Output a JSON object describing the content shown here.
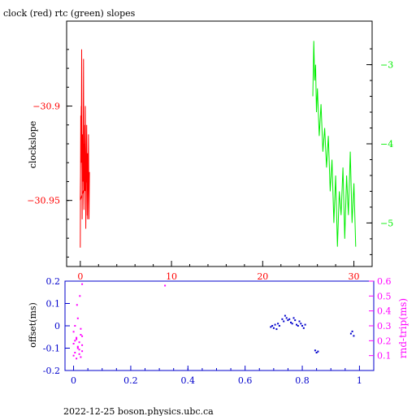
{
  "header": {
    "title": "clock (red) rtc (green) slopes"
  },
  "footer": {
    "text": "2022-12-25  boson.physics.ubc.ca"
  },
  "colors": {
    "frame": "#000000",
    "clock": "#ff0000",
    "rtc": "#00ee00",
    "offset": "#0000cc",
    "rndtrip": "#ff00ff",
    "bottom_axis": "#0000cc"
  },
  "chart_data": [
    {
      "type": "line",
      "title": "clock (red) rtc (green) slopes",
      "xlabel": "",
      "ylabel": "clockslope",
      "xlim": [
        -1.5,
        32
      ],
      "ylim": [
        -30.985,
        -30.855
      ],
      "y2lim": [
        -5.55,
        -2.45
      ],
      "xticks": [
        "0",
        "10",
        "20",
        "30"
      ],
      "yticks": [
        "-30.9",
        "-30.95"
      ],
      "y2ticks": [
        "-3",
        "-4",
        "-5"
      ],
      "series": [
        {
          "name": "clock",
          "axis": "left",
          "color": "#ff0000",
          "x": [
            0.0,
            0.05,
            0.1,
            0.15,
            0.2,
            0.25,
            0.3,
            0.35,
            0.4,
            0.45,
            0.5,
            0.55,
            0.6,
            0.65,
            0.7,
            0.75,
            0.8,
            0.85,
            0.9,
            0.95,
            1.0,
            0.0,
            0.1,
            0.2,
            0.3,
            0.4,
            0.5,
            0.6,
            0.7,
            0.8,
            0.9
          ],
          "y": [
            -30.975,
            -30.905,
            -30.93,
            -30.87,
            -30.96,
            -30.915,
            -30.94,
            -30.875,
            -30.955,
            -30.92,
            -30.945,
            -30.9,
            -30.965,
            -30.93,
            -30.91,
            -30.958,
            -30.925,
            -30.94,
            -30.915,
            -30.96,
            -30.935,
            -30.95,
            -30.9,
            -30.94,
            -30.92,
            -30.955,
            -30.91,
            -30.945,
            -30.93,
            -30.96,
            -30.925
          ]
        },
        {
          "name": "rtc",
          "axis": "right",
          "color": "#00ee00",
          "x": [
            25.5,
            25.6,
            25.7,
            25.8,
            25.9,
            26.0,
            26.2,
            26.4,
            26.6,
            26.8,
            27.0,
            27.2,
            27.4,
            27.6,
            27.8,
            28.0,
            28.2,
            28.4,
            28.6,
            28.8,
            29.0,
            29.2,
            29.4,
            29.6,
            29.8,
            30.0,
            30.2
          ],
          "y": [
            -3.4,
            -2.7,
            -3.2,
            -3.0,
            -3.6,
            -3.3,
            -3.9,
            -3.5,
            -4.1,
            -3.8,
            -4.3,
            -3.9,
            -4.6,
            -4.2,
            -5.0,
            -4.4,
            -5.3,
            -4.6,
            -4.9,
            -4.3,
            -5.2,
            -4.4,
            -4.9,
            -4.1,
            -5.0,
            -4.5,
            -5.3
          ]
        }
      ]
    },
    {
      "type": "scatter",
      "ylabel": "offset(ms)",
      "y2label": "rnd-trip(ms)",
      "xlim": [
        -0.03,
        1.05
      ],
      "ylim": [
        -0.2,
        0.2
      ],
      "y2lim": [
        0.0,
        0.6
      ],
      "xticks": [
        "0",
        "0.2",
        "0.4",
        "0.6",
        "0.8",
        "1"
      ],
      "yticks": [
        "0.2",
        "0.1",
        "0",
        "-0.1",
        "-0.2"
      ],
      "y2ticks": [
        "0.6",
        "0.5",
        "0.4",
        "0.3",
        "0.2",
        "0.1"
      ],
      "series": [
        {
          "name": "offset",
          "axis": "left",
          "color": "#0000cc",
          "x": [
            0.69,
            0.695,
            0.7,
            0.705,
            0.71,
            0.715,
            0.72,
            0.73,
            0.735,
            0.74,
            0.745,
            0.75,
            0.755,
            0.76,
            0.765,
            0.77,
            0.775,
            0.78,
            0.785,
            0.79,
            0.795,
            0.8,
            0.805,
            0.81,
            0.845,
            0.85,
            0.855,
            0.97,
            0.975,
            0.98
          ],
          "y": [
            -0.005,
            0.0,
            -0.01,
            0.005,
            -0.015,
            0.01,
            0.0,
            0.03,
            0.02,
            0.045,
            0.035,
            0.025,
            0.03,
            0.015,
            0.01,
            0.035,
            0.025,
            0.005,
            0.0,
            0.02,
            0.01,
            0.0,
            -0.01,
            0.005,
            -0.11,
            -0.12,
            -0.115,
            -0.035,
            -0.025,
            -0.045
          ]
        },
        {
          "name": "rnd-trip",
          "axis": "right",
          "color": "#ff00ff",
          "x": [
            0.0,
            0.005,
            0.01,
            0.015,
            0.02,
            0.025,
            0.03,
            0.0,
            0.005,
            0.01,
            0.015,
            0.02,
            0.025,
            0.03,
            0.0,
            0.01,
            0.02,
            0.03,
            0.005,
            0.015,
            0.025,
            0.012,
            0.022,
            0.03,
            0.32
          ],
          "y": [
            0.1,
            0.12,
            0.08,
            0.15,
            0.11,
            0.09,
            0.13,
            0.18,
            0.2,
            0.22,
            0.16,
            0.19,
            0.24,
            0.17,
            0.26,
            0.21,
            0.14,
            0.23,
            0.3,
            0.35,
            0.28,
            0.44,
            0.5,
            0.58,
            0.57
          ]
        }
      ]
    }
  ]
}
